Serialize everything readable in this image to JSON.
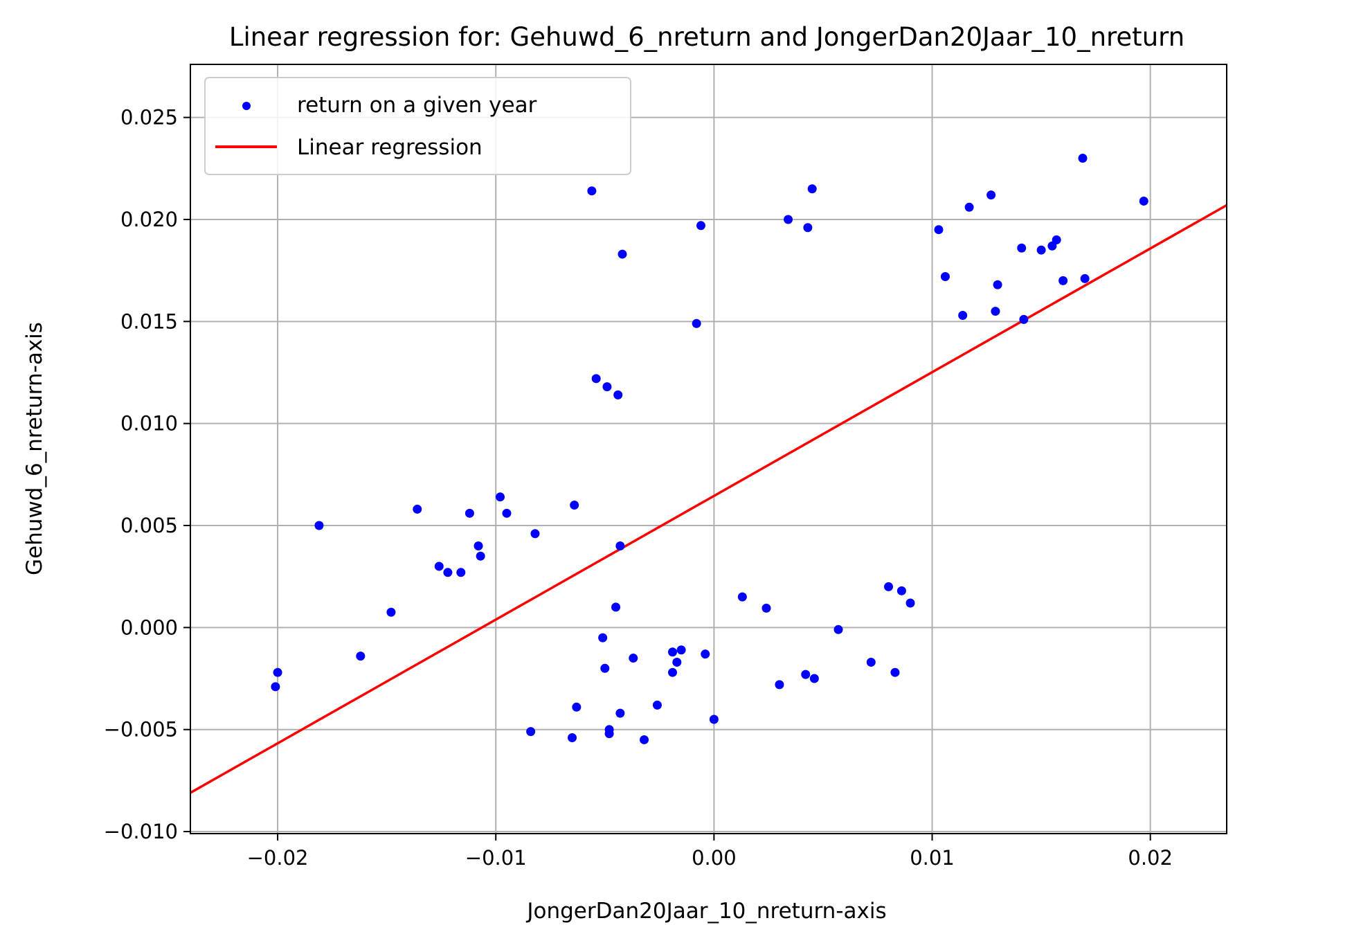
{
  "chart_data": {
    "type": "scatter",
    "title": "Linear regression for: Gehuwd_6_nreturn and JongerDan20Jaar_10_nreturn",
    "xlabel": "JongerDan20Jaar_10_nreturn-axis",
    "ylabel": "Gehuwd_6_nreturn-axis",
    "xlim": [
      -0.024,
      0.0235
    ],
    "ylim": [
      -0.0101,
      0.0276
    ],
    "xticks": [
      -0.02,
      -0.01,
      0.0,
      0.01,
      0.02
    ],
    "xtick_labels": [
      "−0.02",
      "−0.01",
      "0.00",
      "0.01",
      "0.02"
    ],
    "yticks": [
      -0.01,
      -0.005,
      0.0,
      0.005,
      0.01,
      0.015,
      0.02,
      0.025
    ],
    "ytick_labels": [
      "−0.010",
      "−0.005",
      "0.000",
      "0.005",
      "0.010",
      "0.015",
      "0.020",
      "0.025"
    ],
    "grid": true,
    "legend_position": "top-left",
    "series": [
      {
        "name": "return on a given year",
        "type": "scatter",
        "color": "#0000ff",
        "points": [
          [
            -0.0201,
            -0.0029
          ],
          [
            -0.02,
            -0.0022
          ],
          [
            -0.0181,
            0.005
          ],
          [
            -0.0162,
            -0.0014
          ],
          [
            -0.0148,
            0.00075
          ],
          [
            -0.0136,
            0.0058
          ],
          [
            -0.0126,
            0.003
          ],
          [
            -0.0122,
            0.0027
          ],
          [
            -0.0116,
            0.0027
          ],
          [
            -0.0112,
            0.0056
          ],
          [
            -0.0108,
            0.004
          ],
          [
            -0.0107,
            0.0035
          ],
          [
            -0.0098,
            0.0064
          ],
          [
            -0.0095,
            0.0056
          ],
          [
            -0.0084,
            -0.0051
          ],
          [
            -0.0082,
            0.0046
          ],
          [
            -0.0065,
            -0.0054
          ],
          [
            -0.0064,
            0.006
          ],
          [
            -0.0063,
            -0.0039
          ],
          [
            -0.0056,
            0.0214
          ],
          [
            -0.0054,
            0.0122
          ],
          [
            -0.0051,
            -0.0005
          ],
          [
            -0.005,
            -0.002
          ],
          [
            -0.0049,
            0.0118
          ],
          [
            -0.0048,
            -0.005
          ],
          [
            -0.0048,
            -0.0052
          ],
          [
            -0.0045,
            0.001
          ],
          [
            -0.0044,
            0.0114
          ],
          [
            -0.0043,
            -0.0042
          ],
          [
            -0.0043,
            0.004
          ],
          [
            -0.0042,
            0.0183
          ],
          [
            -0.0037,
            -0.0015
          ],
          [
            -0.0032,
            -0.0055
          ],
          [
            -0.0026,
            -0.0038
          ],
          [
            -0.0019,
            -0.0012
          ],
          [
            -0.0019,
            -0.0022
          ],
          [
            -0.0017,
            -0.0017
          ],
          [
            -0.0015,
            -0.0011
          ],
          [
            -0.0008,
            0.0149
          ],
          [
            -0.0006,
            0.0197
          ],
          [
            -0.0004,
            -0.0013
          ],
          [
            0.0,
            -0.0045
          ],
          [
            0.0013,
            0.0015
          ],
          [
            0.0024,
            0.00095
          ],
          [
            0.003,
            -0.0028
          ],
          [
            0.0034,
            0.02
          ],
          [
            0.0042,
            -0.0023
          ],
          [
            0.0043,
            0.0196
          ],
          [
            0.0045,
            0.0215
          ],
          [
            0.0046,
            -0.0025
          ],
          [
            0.0057,
            -0.0001
          ],
          [
            0.0072,
            -0.0017
          ],
          [
            0.008,
            0.002
          ],
          [
            0.0083,
            -0.0022
          ],
          [
            0.0086,
            0.0018
          ],
          [
            0.009,
            0.0012
          ],
          [
            0.0103,
            0.0195
          ],
          [
            0.0106,
            0.0172
          ],
          [
            0.0114,
            0.0153
          ],
          [
            0.0117,
            0.0206
          ],
          [
            0.0127,
            0.0212
          ],
          [
            0.0129,
            0.0155
          ],
          [
            0.013,
            0.0168
          ],
          [
            0.0141,
            0.0186
          ],
          [
            0.0142,
            0.0151
          ],
          [
            0.015,
            0.0185
          ],
          [
            0.0155,
            0.0187
          ],
          [
            0.0157,
            0.019
          ],
          [
            0.016,
            0.017
          ],
          [
            0.0169,
            0.023
          ],
          [
            0.017,
            0.0171
          ],
          [
            0.0197,
            0.0209
          ]
        ]
      },
      {
        "name": "Linear regression",
        "type": "line",
        "color": "#ff0000",
        "points": [
          [
            -0.024,
            -0.0081
          ],
          [
            0.0235,
            0.0207
          ]
        ]
      }
    ]
  }
}
